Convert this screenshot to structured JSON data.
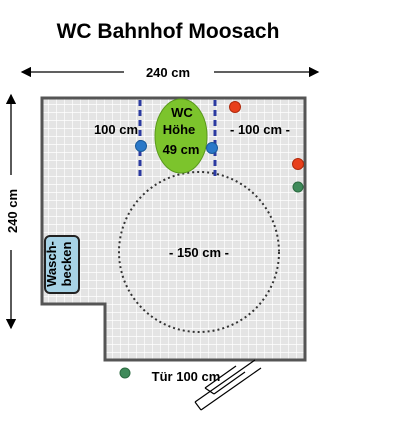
{
  "title": "WC Bahnhof Moosach",
  "dimensions": {
    "width": "240 cm",
    "height": "240 cm",
    "left_space": "100 cm",
    "right_space": "- 100 cm -",
    "turning_circle": "- 150 cm -",
    "door": "Tür 100 cm"
  },
  "toilet": {
    "label": "WC",
    "height_label": "Höhe",
    "height_value": "49 cm"
  },
  "sink": {
    "line1": "Wasch-",
    "line2": "becken"
  },
  "colors": {
    "floor_fill": "#e4e4e4",
    "grid_line": "#ffffff",
    "wall": "#555555",
    "toilet": "#7cc42c",
    "sink": "#a7d3e6",
    "grab_bar": "#2b3aa0",
    "red_button": "#e8401c",
    "blue_dot": "#2a78c8",
    "green_dot": "#3f8a5a"
  },
  "icons": [
    "dimension-arrow-icon",
    "door-swing-icon",
    "emergency-button-icon"
  ]
}
